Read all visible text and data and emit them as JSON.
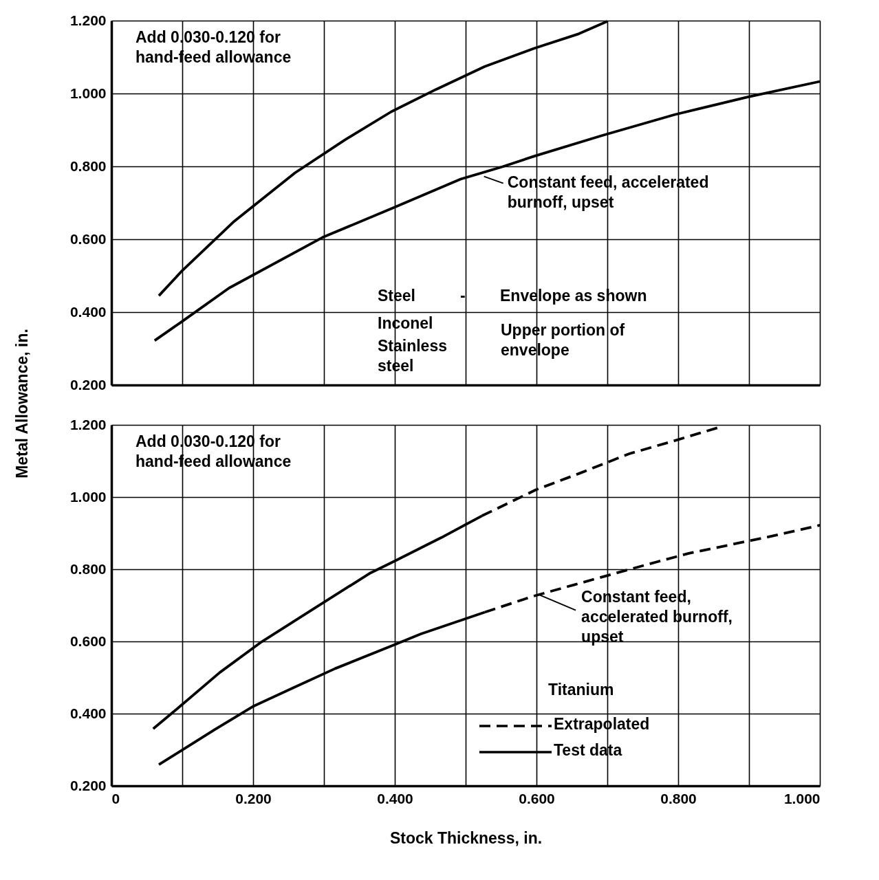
{
  "chart_data": [
    {
      "type": "line",
      "ylabel": "Metal Allowance, in.",
      "xlim": [
        0,
        1
      ],
      "ylim": [
        0.2,
        1.2
      ],
      "xticks": [
        0,
        0.1,
        0.2,
        0.3,
        0.4,
        0.5,
        0.6,
        0.7,
        0.8,
        0.9,
        1.0
      ],
      "yticks": [
        {
          "value": 0.2,
          "label": "0.200"
        },
        {
          "value": 0.4,
          "label": "0.400"
        },
        {
          "value": 0.6,
          "label": "0.600"
        },
        {
          "value": 0.8,
          "label": "0.800"
        },
        {
          "value": 1.0,
          "label": "1.000"
        },
        {
          "value": 1.2,
          "label": "1.200"
        }
      ],
      "tick_labels": "y",
      "grid": true,
      "series": [
        {
          "color": "#000000",
          "line_style": "solid",
          "x": [
            0.067,
            0.1,
            0.172,
            0.259,
            0.329,
            0.395,
            0.458,
            0.527,
            0.597,
            0.66,
            0.7
          ],
          "values": [
            0.445,
            0.514,
            0.647,
            0.782,
            0.872,
            0.95,
            1.011,
            1.074,
            1.124,
            1.164,
            1.198
          ]
        },
        {
          "color": "#000000",
          "line_style": "solid",
          "x": [
            0.061,
            0.098,
            0.166,
            0.298,
            0.395,
            0.493,
            0.552,
            0.597,
            0.693,
            0.795,
            0.897,
            1.0
          ],
          "values": [
            0.322,
            0.372,
            0.466,
            0.605,
            0.684,
            0.765,
            0.799,
            0.828,
            0.885,
            0.942,
            0.99,
            1.033
          ]
        }
      ],
      "annotations": [
        "Add 0.030-0.120 for\nhand-feed allowance",
        {
          "text": "Constant feed, accelerated\nburnoff, upset",
          "x": 0.524,
          "y": 0.78
        },
        "Steel",
        "-",
        "Envelope as shown",
        "Inconel",
        "Stainless\nsteel",
        "Upper portion of\nenvelope"
      ]
    },
    {
      "type": "line",
      "xlabel": "Stock Thickness, in.",
      "legend_title": "Titanium",
      "xlim": [
        0,
        1
      ],
      "ylim": [
        0.2,
        1.2
      ],
      "xticks": [
        {
          "value": 0,
          "label": "0"
        },
        {
          "value": 0.1,
          "label": null
        },
        {
          "value": 0.2,
          "label": "0.200"
        },
        {
          "value": 0.3,
          "label": null
        },
        {
          "value": 0.4,
          "label": "0.400"
        },
        {
          "value": 0.5,
          "label": null
        },
        {
          "value": 0.6,
          "label": "0.600"
        },
        {
          "value": 0.7,
          "label": null
        },
        {
          "value": 0.8,
          "label": "0.800"
        },
        {
          "value": 0.9,
          "label": null
        },
        {
          "value": 1.0,
          "label": "1.000"
        }
      ],
      "yticks": [
        {
          "value": 0.2,
          "label": "0.200"
        },
        {
          "value": 0.4,
          "label": "0.400"
        },
        {
          "value": 0.6,
          "label": "0.600"
        },
        {
          "value": 0.8,
          "label": "0.800"
        },
        {
          "value": 1.0,
          "label": "1.000"
        },
        {
          "value": 1.2,
          "label": "1.200"
        }
      ],
      "grid": true,
      "legend": "bottom right",
      "series": [
        {
          "name": "Extrapolated",
          "color": "#000000",
          "line_style": "dashed",
          "x": [
            0.523,
            0.599,
            0.661,
            0.731,
            0.793,
            0.859
          ],
          "values": [
            0.948,
            1.02,
            1.066,
            1.12,
            1.155,
            1.194
          ]
        },
        {
          "color": "#000000",
          "line_style": "dashed",
          "x": [
            0.527,
            0.595,
            0.655,
            0.721,
            0.771,
            0.815,
            0.874,
            0.933,
            1.0
          ],
          "values": [
            0.681,
            0.725,
            0.758,
            0.794,
            0.821,
            0.844,
            0.868,
            0.892,
            0.922
          ]
        },
        {
          "name": "Test data",
          "color": "#000000",
          "line_style": "solid",
          "x": [
            0.059,
            0.095,
            0.153,
            0.212,
            0.278,
            0.364,
            0.4,
            0.466,
            0.523
          ],
          "values": [
            0.358,
            0.417,
            0.514,
            0.599,
            0.681,
            0.788,
            0.823,
            0.888,
            0.948
          ]
        },
        {
          "color": "#000000",
          "line_style": "solid",
          "x": [
            0.067,
            0.095,
            0.146,
            0.201,
            0.256,
            0.316,
            0.396,
            0.437,
            0.527
          ],
          "values": [
            0.259,
            0.293,
            0.356,
            0.421,
            0.471,
            0.525,
            0.588,
            0.621,
            0.681
          ]
        }
      ],
      "annotations": [
        "Add 0.030-0.120 for\nhand-feed allowance",
        {
          "text": "Constant feed,\naccelerated burnoff,\nupset",
          "x": 0.603,
          "y": 0.736
        }
      ]
    }
  ]
}
